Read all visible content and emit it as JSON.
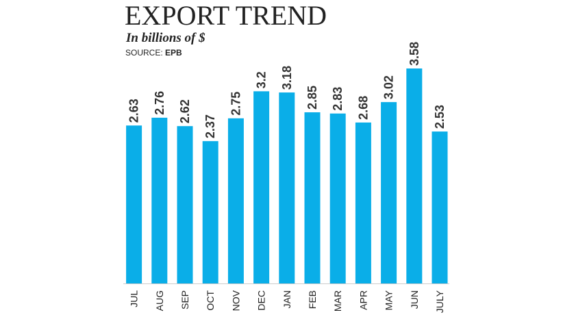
{
  "chart_data": {
    "type": "bar",
    "title": "EXPORT TREND",
    "subtitle": "In billions of $",
    "source_label": "SOURCE:",
    "source": "EPB",
    "categories": [
      "JUL",
      "AUG",
      "SEP",
      "OCT",
      "NOV",
      "DEC",
      "JAN",
      "FEB",
      "MAR",
      "APR",
      "MAY",
      "JUN",
      "JULY"
    ],
    "values": [
      2.63,
      2.76,
      2.62,
      2.37,
      2.75,
      3.2,
      3.18,
      2.85,
      2.83,
      2.68,
      3.02,
      3.58,
      2.53
    ],
    "color": "#0aaee8"
  }
}
